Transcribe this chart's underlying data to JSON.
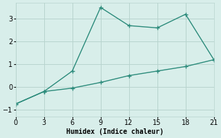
{
  "xlabel": "Humidex (Indice chaleur)",
  "line1_x": [
    0,
    3,
    6,
    9,
    12,
    15,
    18,
    21
  ],
  "line1_y": [
    -0.75,
    -0.2,
    0.7,
    3.5,
    2.7,
    2.6,
    3.2,
    1.2
  ],
  "line2_x": [
    0,
    3,
    6,
    9,
    12,
    15,
    18,
    21
  ],
  "line2_y": [
    -0.75,
    -0.2,
    -0.05,
    0.2,
    0.5,
    0.7,
    0.9,
    1.2
  ],
  "line_color": "#2a8a7a",
  "bg_color": "#d8eeea",
  "grid_color": "#b8d4ce",
  "xlim": [
    0,
    21
  ],
  "ylim": [
    -1.3,
    3.7
  ],
  "xticks": [
    0,
    3,
    6,
    9,
    12,
    15,
    18,
    21
  ],
  "yticks": [
    -1,
    0,
    1,
    2,
    3
  ],
  "marker": "+",
  "marker_size": 5,
  "linewidth": 1.0,
  "tick_fontsize": 7,
  "xlabel_fontsize": 7
}
